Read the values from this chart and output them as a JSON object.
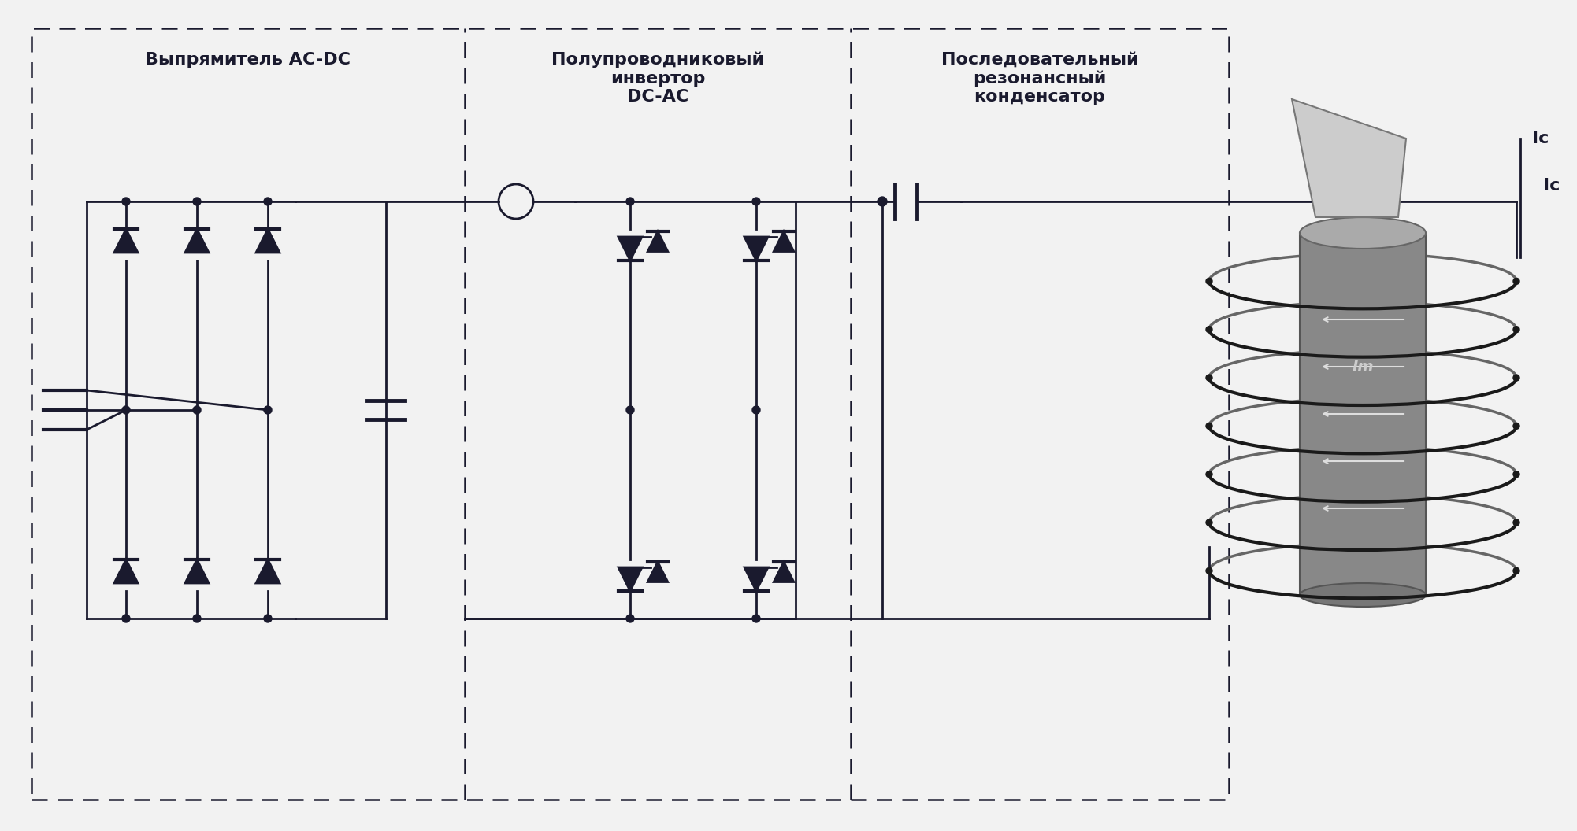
{
  "bg_color": "#f2f2f2",
  "line_color": "#1a1a2e",
  "label1": "Выпрямитель AC-DC",
  "label2": "Полупроводниковый\nинвертор\nDC-AC",
  "label3": "Последовательный\nрезонансный\nконденсатор",
  "label_Ic": "Ic",
  "label_Im": "Im",
  "fig_w": 20.02,
  "fig_h": 10.56,
  "dpi": 100
}
